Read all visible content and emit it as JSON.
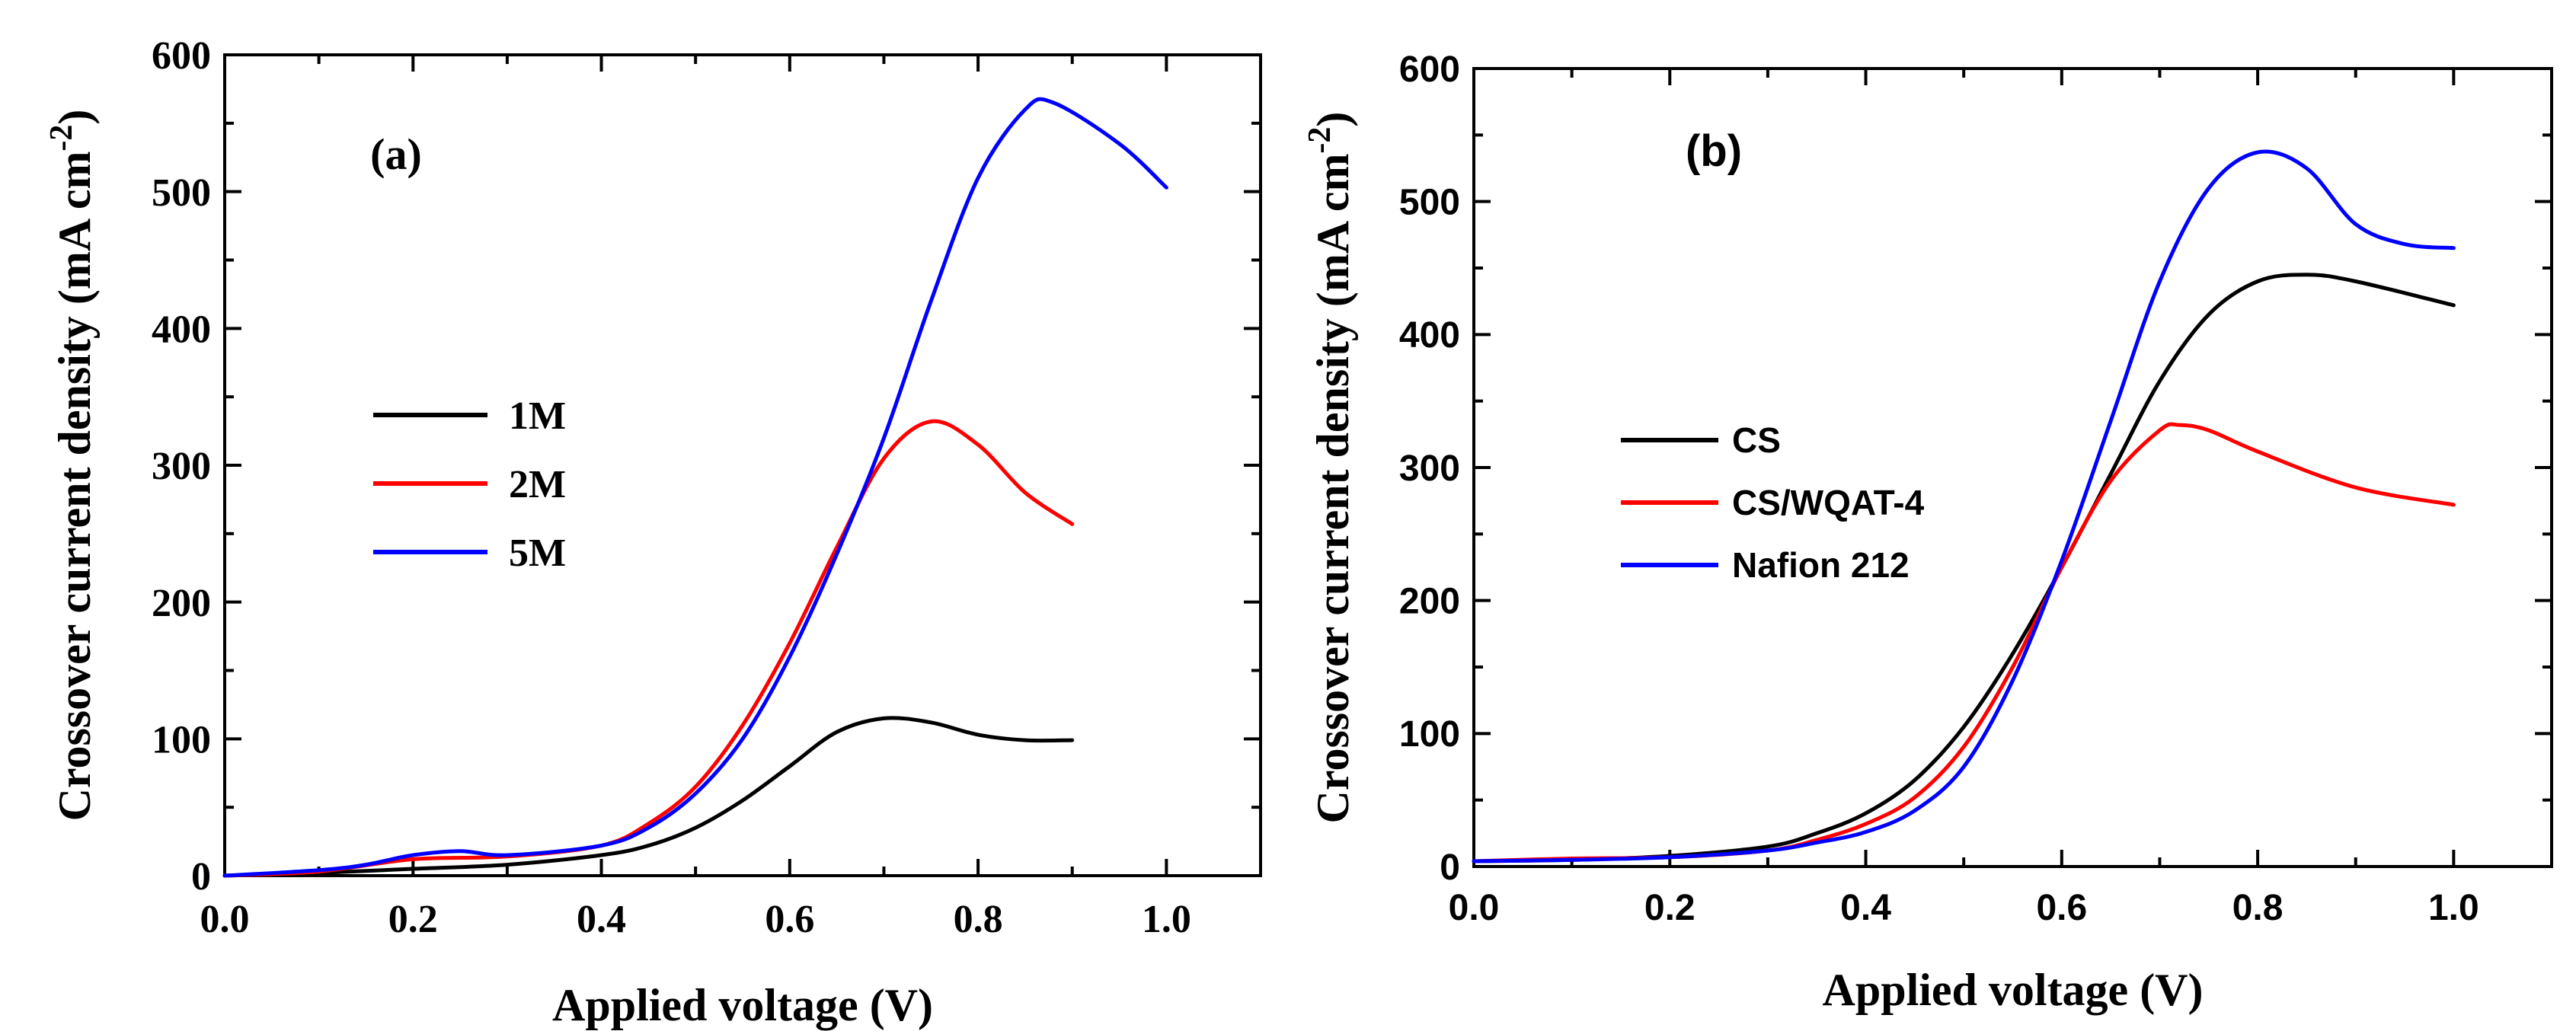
{
  "chart_data": [
    {
      "type": "line",
      "panel_label": "(a)",
      "xlabel": "Applied voltage (V)",
      "ylabel_main": "Crossover current density (mA cm",
      "ylabel_sup": "-2",
      "ylabel_close": ")",
      "xlim": [
        0,
        1.1
      ],
      "ylim": [
        0,
        600
      ],
      "xticks": [
        0.0,
        0.2,
        0.4,
        0.6,
        0.8,
        1.0
      ],
      "xtick_labels": [
        "0.0",
        "0.2",
        "0.4",
        "0.6",
        "0.8",
        "1.0"
      ],
      "yticks": [
        0,
        100,
        200,
        300,
        400,
        500,
        600
      ],
      "ytick_labels": [
        "0",
        "100",
        "200",
        "300",
        "400",
        "500",
        "600"
      ],
      "legend_position": "middle-left",
      "series": [
        {
          "name": "1M",
          "color": "#000000",
          "x": [
            0.0,
            0.1,
            0.2,
            0.3,
            0.4,
            0.45,
            0.5,
            0.55,
            0.6,
            0.65,
            0.7,
            0.75,
            0.8,
            0.85,
            0.9
          ],
          "y": [
            0,
            2,
            5,
            8,
            15,
            22,
            35,
            55,
            80,
            105,
            115,
            112,
            103,
            99,
            99
          ]
        },
        {
          "name": "2M",
          "color": "#ff0000",
          "x": [
            0.0,
            0.1,
            0.2,
            0.3,
            0.4,
            0.45,
            0.5,
            0.55,
            0.6,
            0.65,
            0.7,
            0.75,
            0.8,
            0.85,
            0.9
          ],
          "y": [
            0,
            3,
            12,
            14,
            22,
            38,
            65,
            110,
            170,
            240,
            305,
            332,
            315,
            280,
            257
          ]
        },
        {
          "name": "5M",
          "color": "#0000ff",
          "x": [
            0.0,
            0.1,
            0.15,
            0.2,
            0.25,
            0.3,
            0.4,
            0.45,
            0.5,
            0.55,
            0.6,
            0.65,
            0.7,
            0.75,
            0.8,
            0.85,
            0.88,
            0.95,
            1.0
          ],
          "y": [
            0,
            4,
            8,
            15,
            18,
            15,
            22,
            35,
            60,
            100,
            160,
            235,
            320,
            420,
            510,
            560,
            565,
            535,
            503
          ]
        }
      ]
    },
    {
      "type": "line",
      "panel_label": "(b)",
      "xlabel": "Applied voltage (V)",
      "ylabel_main": "Crossover current density (mA cm",
      "ylabel_sup": "-2",
      "ylabel_close": ")",
      "xlim": [
        0,
        1.1
      ],
      "ylim": [
        0,
        600
      ],
      "xticks": [
        0.0,
        0.2,
        0.4,
        0.6,
        0.8,
        1.0
      ],
      "xtick_labels": [
        "0.0",
        "0.2",
        "0.4",
        "0.6",
        "0.8",
        "1.0"
      ],
      "yticks": [
        0,
        100,
        200,
        300,
        400,
        500,
        600
      ],
      "ytick_labels": [
        "0",
        "100",
        "200",
        "300",
        "400",
        "500",
        "600"
      ],
      "legend_position": "middle-left",
      "series": [
        {
          "name": "CS",
          "color": "#000000",
          "x": [
            0.0,
            0.1,
            0.2,
            0.3,
            0.35,
            0.4,
            0.45,
            0.5,
            0.55,
            0.6,
            0.65,
            0.7,
            0.75,
            0.8,
            0.85,
            0.9,
            1.0
          ],
          "y": [
            4,
            5,
            8,
            15,
            25,
            40,
            65,
            105,
            160,
            225,
            295,
            365,
            415,
            440,
            445,
            440,
            422
          ]
        },
        {
          "name": "CS/WQAT-4",
          "color": "#ff0000",
          "x": [
            0.0,
            0.1,
            0.2,
            0.3,
            0.35,
            0.4,
            0.45,
            0.5,
            0.55,
            0.6,
            0.65,
            0.7,
            0.72,
            0.75,
            0.8,
            0.9,
            1.0
          ],
          "y": [
            4,
            6,
            7,
            12,
            20,
            32,
            52,
            90,
            150,
            225,
            290,
            328,
            332,
            328,
            312,
            285,
            272
          ]
        },
        {
          "name": "Nafion 212",
          "color": "#0000ff",
          "x": [
            0.0,
            0.1,
            0.2,
            0.3,
            0.35,
            0.4,
            0.45,
            0.5,
            0.55,
            0.6,
            0.65,
            0.7,
            0.75,
            0.8,
            0.85,
            0.9,
            0.95,
            1.0
          ],
          "y": [
            4,
            5,
            7,
            12,
            18,
            26,
            42,
            75,
            140,
            230,
            335,
            440,
            510,
            537,
            525,
            483,
            468,
            465
          ]
        }
      ]
    }
  ]
}
